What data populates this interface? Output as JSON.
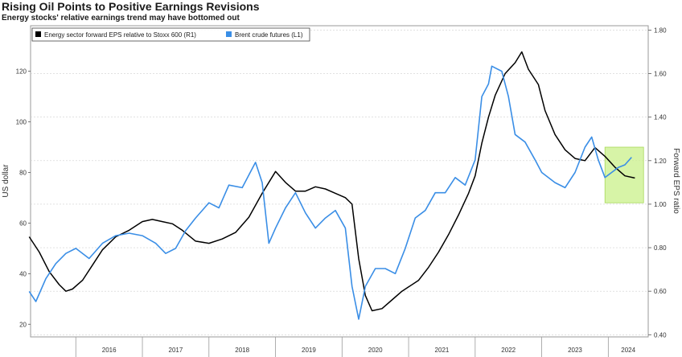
{
  "header": {
    "title": "Rising Oil Points to Positive Earnings Revisions",
    "subtitle": "Energy stocks' relative earnings trend may have bottomed out"
  },
  "chart_data": {
    "type": "line",
    "ylabel_left": "US dollar",
    "ylabel_right": "Forward EPS ratio",
    "ylim_left": [
      15,
      138
    ],
    "ylim_right": [
      0.39,
      1.82
    ],
    "left_ticks": [
      "20",
      "40",
      "60",
      "80",
      "100",
      "120"
    ],
    "right_ticks": [
      "0.40",
      "0.60",
      "0.80",
      "1.00",
      "1.20",
      "1.40",
      "1.60",
      "1.80"
    ],
    "x_ticks": [
      "2016",
      "2017",
      "2018",
      "2019",
      "2020",
      "2021",
      "2022",
      "2023",
      "2024"
    ],
    "grid": "horizontal dashed",
    "legend_position": "top-left",
    "colors": {
      "brent": "#3a8ee6",
      "eps": "#000000",
      "highlight": "#c9f08a"
    },
    "series": [
      {
        "name": "Energy sector forward EPS relative to Stoxx 600 (R1)",
        "axis": "right",
        "points": [
          [
            2015.3,
            0.85
          ],
          [
            2015.45,
            0.78
          ],
          [
            2015.6,
            0.69
          ],
          [
            2015.75,
            0.63
          ],
          [
            2015.85,
            0.6
          ],
          [
            2015.95,
            0.61
          ],
          [
            2016.1,
            0.65
          ],
          [
            2016.25,
            0.72
          ],
          [
            2016.4,
            0.79
          ],
          [
            2016.6,
            0.85
          ],
          [
            2016.8,
            0.88
          ],
          [
            2017.0,
            0.92
          ],
          [
            2017.15,
            0.93
          ],
          [
            2017.3,
            0.92
          ],
          [
            2017.45,
            0.91
          ],
          [
            2017.6,
            0.88
          ],
          [
            2017.8,
            0.83
          ],
          [
            2018.0,
            0.82
          ],
          [
            2018.2,
            0.84
          ],
          [
            2018.4,
            0.87
          ],
          [
            2018.6,
            0.94
          ],
          [
            2018.8,
            1.05
          ],
          [
            2019.0,
            1.15
          ],
          [
            2019.15,
            1.1
          ],
          [
            2019.3,
            1.06
          ],
          [
            2019.45,
            1.06
          ],
          [
            2019.6,
            1.08
          ],
          [
            2019.75,
            1.07
          ],
          [
            2019.9,
            1.05
          ],
          [
            2020.05,
            1.03
          ],
          [
            2020.15,
            1.0
          ],
          [
            2020.25,
            0.75
          ],
          [
            2020.35,
            0.58
          ],
          [
            2020.45,
            0.51
          ],
          [
            2020.6,
            0.52
          ],
          [
            2020.75,
            0.56
          ],
          [
            2020.9,
            0.6
          ],
          [
            2021.0,
            0.62
          ],
          [
            2021.15,
            0.65
          ],
          [
            2021.3,
            0.71
          ],
          [
            2021.45,
            0.78
          ],
          [
            2021.6,
            0.86
          ],
          [
            2021.75,
            0.95
          ],
          [
            2021.9,
            1.05
          ],
          [
            2022.0,
            1.13
          ],
          [
            2022.1,
            1.28
          ],
          [
            2022.2,
            1.4
          ],
          [
            2022.3,
            1.5
          ],
          [
            2022.45,
            1.6
          ],
          [
            2022.6,
            1.65
          ],
          [
            2022.7,
            1.7
          ],
          [
            2022.8,
            1.62
          ],
          [
            2022.95,
            1.55
          ],
          [
            2023.05,
            1.43
          ],
          [
            2023.2,
            1.32
          ],
          [
            2023.35,
            1.25
          ],
          [
            2023.5,
            1.21
          ],
          [
            2023.65,
            1.2
          ],
          [
            2023.8,
            1.26
          ],
          [
            2023.95,
            1.22
          ],
          [
            2024.1,
            1.17
          ],
          [
            2024.25,
            1.13
          ],
          [
            2024.4,
            1.12
          ]
        ]
      },
      {
        "name": "Brent crude futures (L1)",
        "axis": "left",
        "points": [
          [
            2015.3,
            33
          ],
          [
            2015.4,
            29
          ],
          [
            2015.55,
            38
          ],
          [
            2015.7,
            44
          ],
          [
            2015.85,
            48
          ],
          [
            2016.0,
            50
          ],
          [
            2016.2,
            46
          ],
          [
            2016.4,
            52
          ],
          [
            2016.6,
            55
          ],
          [
            2016.8,
            56
          ],
          [
            2017.0,
            55
          ],
          [
            2017.2,
            52
          ],
          [
            2017.35,
            48
          ],
          [
            2017.5,
            50
          ],
          [
            2017.65,
            57
          ],
          [
            2017.8,
            62
          ],
          [
            2018.0,
            68
          ],
          [
            2018.15,
            66
          ],
          [
            2018.3,
            75
          ],
          [
            2018.5,
            74
          ],
          [
            2018.7,
            84
          ],
          [
            2018.8,
            76
          ],
          [
            2018.9,
            52
          ],
          [
            2019.0,
            58
          ],
          [
            2019.15,
            66
          ],
          [
            2019.3,
            72
          ],
          [
            2019.45,
            64
          ],
          [
            2019.6,
            58
          ],
          [
            2019.75,
            62
          ],
          [
            2019.9,
            65
          ],
          [
            2020.05,
            58
          ],
          [
            2020.15,
            35
          ],
          [
            2020.25,
            22
          ],
          [
            2020.35,
            35
          ],
          [
            2020.5,
            42
          ],
          [
            2020.65,
            42
          ],
          [
            2020.8,
            40
          ],
          [
            2020.95,
            50
          ],
          [
            2021.1,
            62
          ],
          [
            2021.25,
            65
          ],
          [
            2021.4,
            72
          ],
          [
            2021.55,
            72
          ],
          [
            2021.7,
            78
          ],
          [
            2021.85,
            75
          ],
          [
            2022.0,
            85
          ],
          [
            2022.1,
            110
          ],
          [
            2022.2,
            115
          ],
          [
            2022.25,
            122
          ],
          [
            2022.4,
            120
          ],
          [
            2022.5,
            110
          ],
          [
            2022.6,
            95
          ],
          [
            2022.75,
            92
          ],
          [
            2022.9,
            85
          ],
          [
            2023.0,
            80
          ],
          [
            2023.2,
            76
          ],
          [
            2023.35,
            74
          ],
          [
            2023.5,
            80
          ],
          [
            2023.65,
            90
          ],
          [
            2023.75,
            94
          ],
          [
            2023.85,
            85
          ],
          [
            2023.95,
            78
          ],
          [
            2024.05,
            80
          ],
          [
            2024.15,
            82
          ],
          [
            2024.25,
            83
          ],
          [
            2024.35,
            86
          ]
        ]
      }
    ]
  }
}
